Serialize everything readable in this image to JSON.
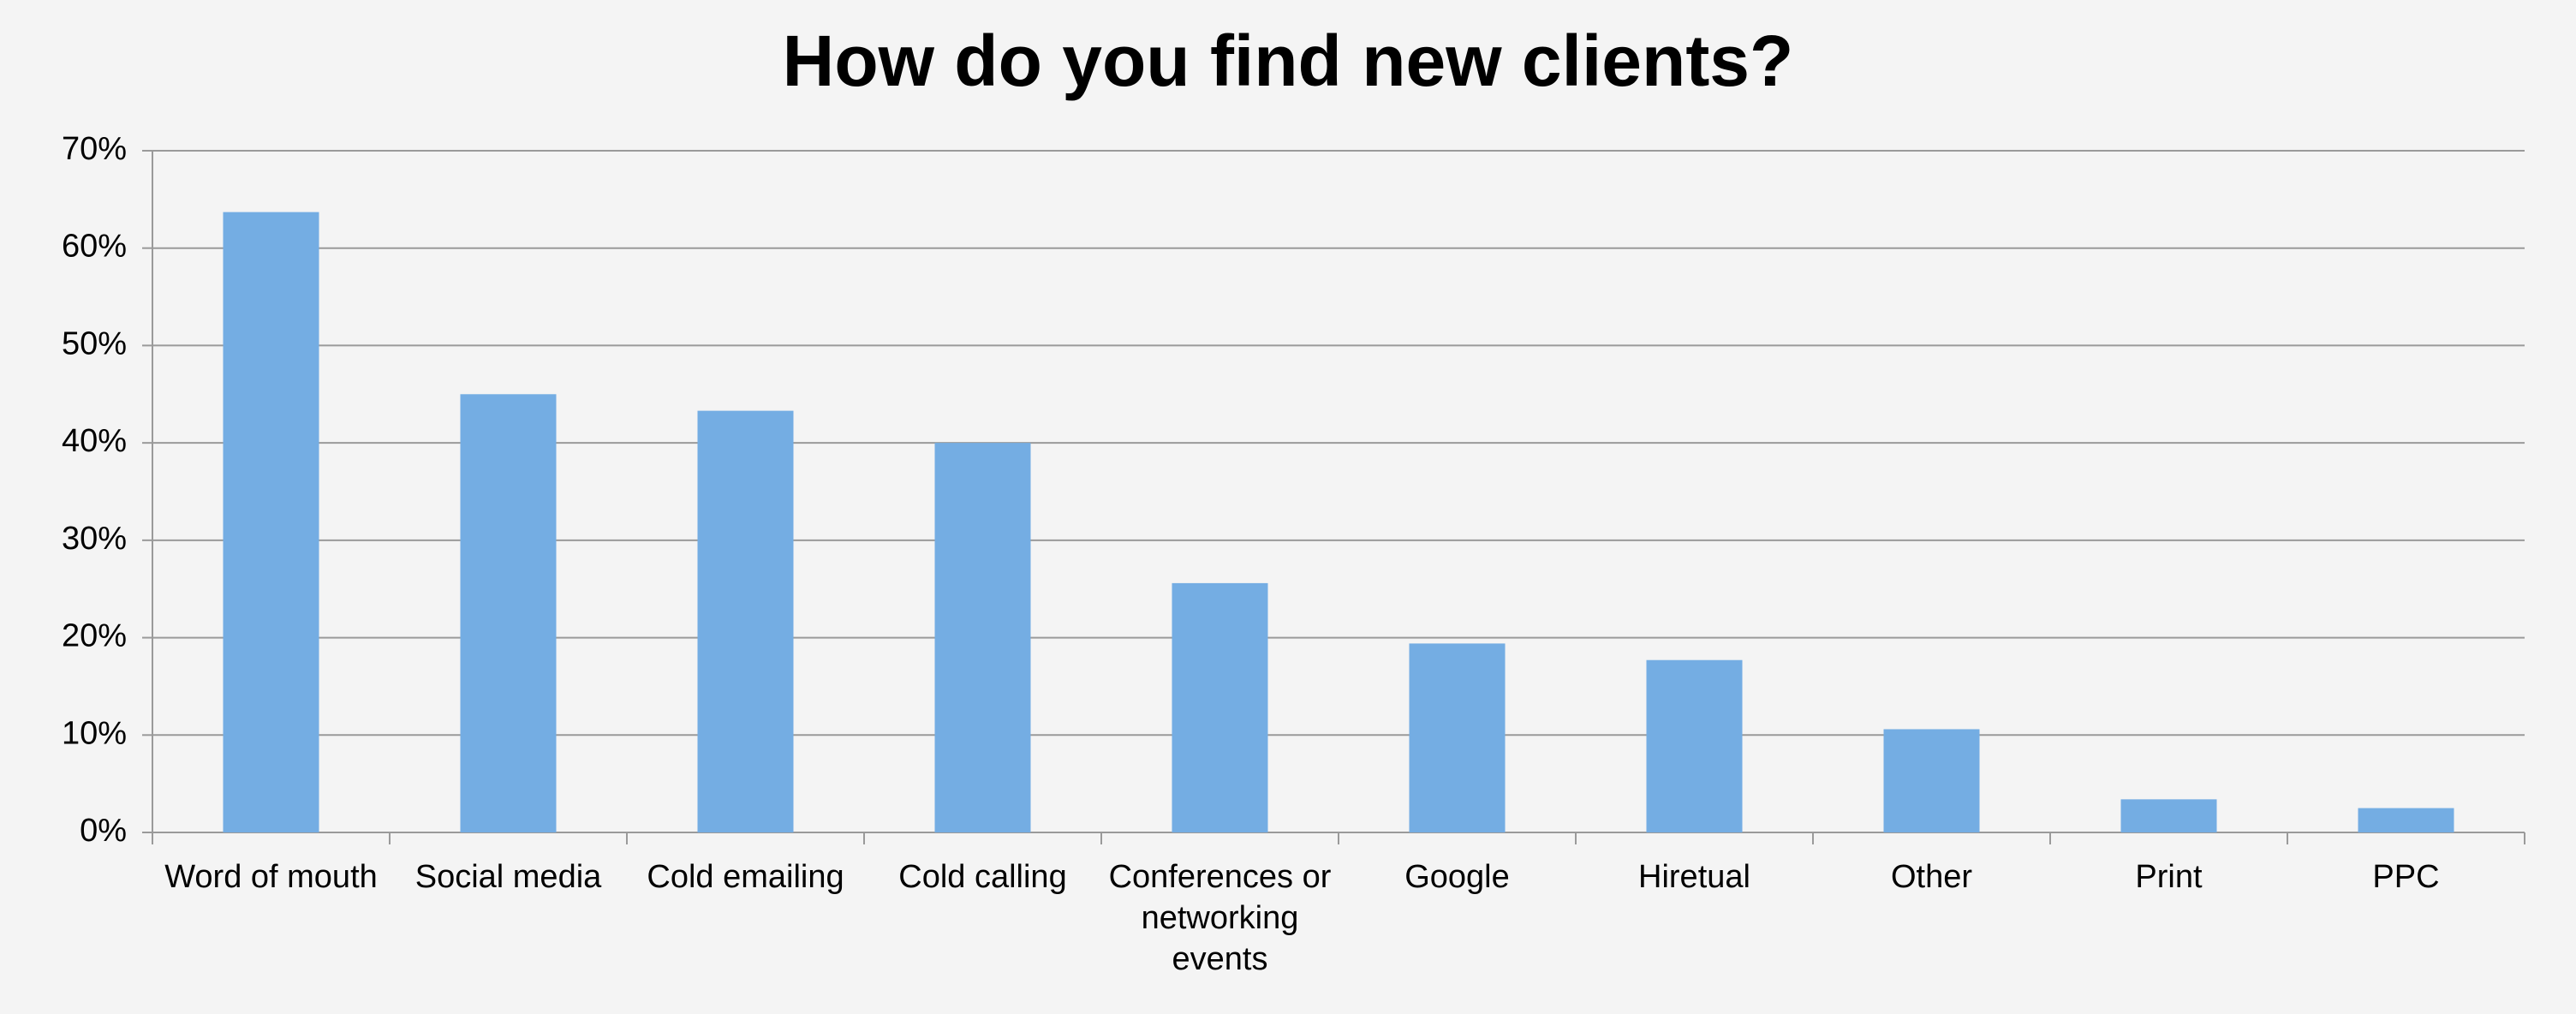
{
  "chart_data": {
    "type": "bar",
    "title": "How do you find new clients?",
    "categories": [
      "Word of mouth",
      "Social media",
      "Cold emailing",
      "Cold calling",
      "Conferences or networking events",
      "Google",
      "Hiretual",
      "Other",
      "Print",
      "PPC"
    ],
    "values": [
      63.7,
      45,
      43.3,
      40,
      25.6,
      19.4,
      17.7,
      10.6,
      3.4,
      2.5
    ],
    "color": "#74ade3",
    "ylim": [
      0,
      70
    ],
    "yticks": [
      {
        "value": 0,
        "label": "0%"
      },
      {
        "value": 10,
        "label": "10%"
      },
      {
        "value": 20,
        "label": "20%"
      },
      {
        "value": 30,
        "label": "30%"
      },
      {
        "value": 40,
        "label": "40%"
      },
      {
        "value": 50,
        "label": "50%"
      },
      {
        "value": 60,
        "label": "60%"
      },
      {
        "value": 70,
        "label": "70%"
      }
    ],
    "grid": true
  }
}
